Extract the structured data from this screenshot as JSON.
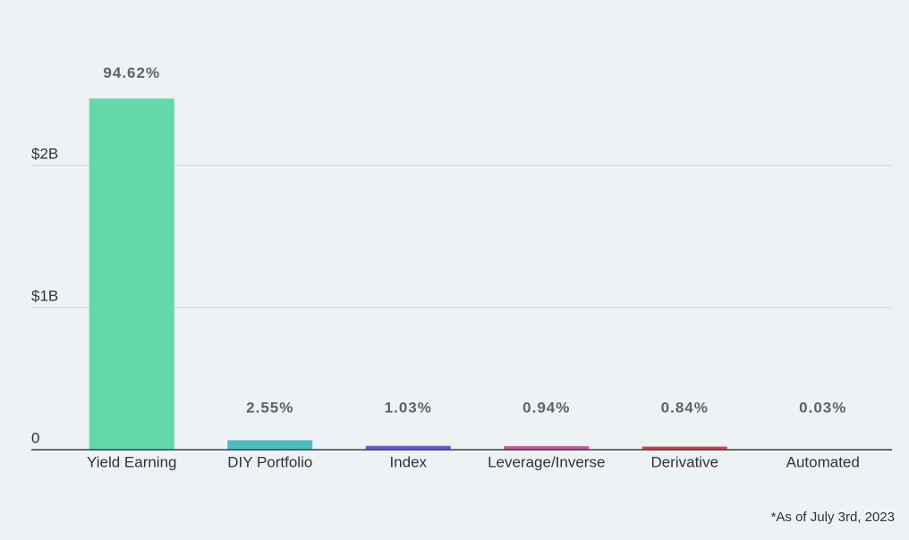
{
  "chart_data": {
    "type": "bar",
    "categories": [
      "Yield Earning",
      "DIY Portfolio",
      "Index",
      "Leverage/Inverse",
      "Derivative",
      "Automated"
    ],
    "values": [
      2470000000,
      66600000,
      26900000,
      24500000,
      21900000,
      780000
    ],
    "percent_labels": [
      "94.62%",
      "2.55%",
      "1.03%",
      "0.94%",
      "0.84%",
      "0.03%"
    ],
    "colors": [
      "#63d8a8",
      "#4dbdc4",
      "#7250dc",
      "#c4579a",
      "#d3414a",
      "#e8c547"
    ],
    "ylim": [
      0,
      2800000000
    ],
    "yticks": [
      0,
      {
        "value": 1000000000,
        "label": "$1B"
      },
      {
        "value": 2000000000,
        "label": "$2B"
      }
    ],
    "grid": true,
    "footnote": "*As of July 3rd, 2023"
  }
}
